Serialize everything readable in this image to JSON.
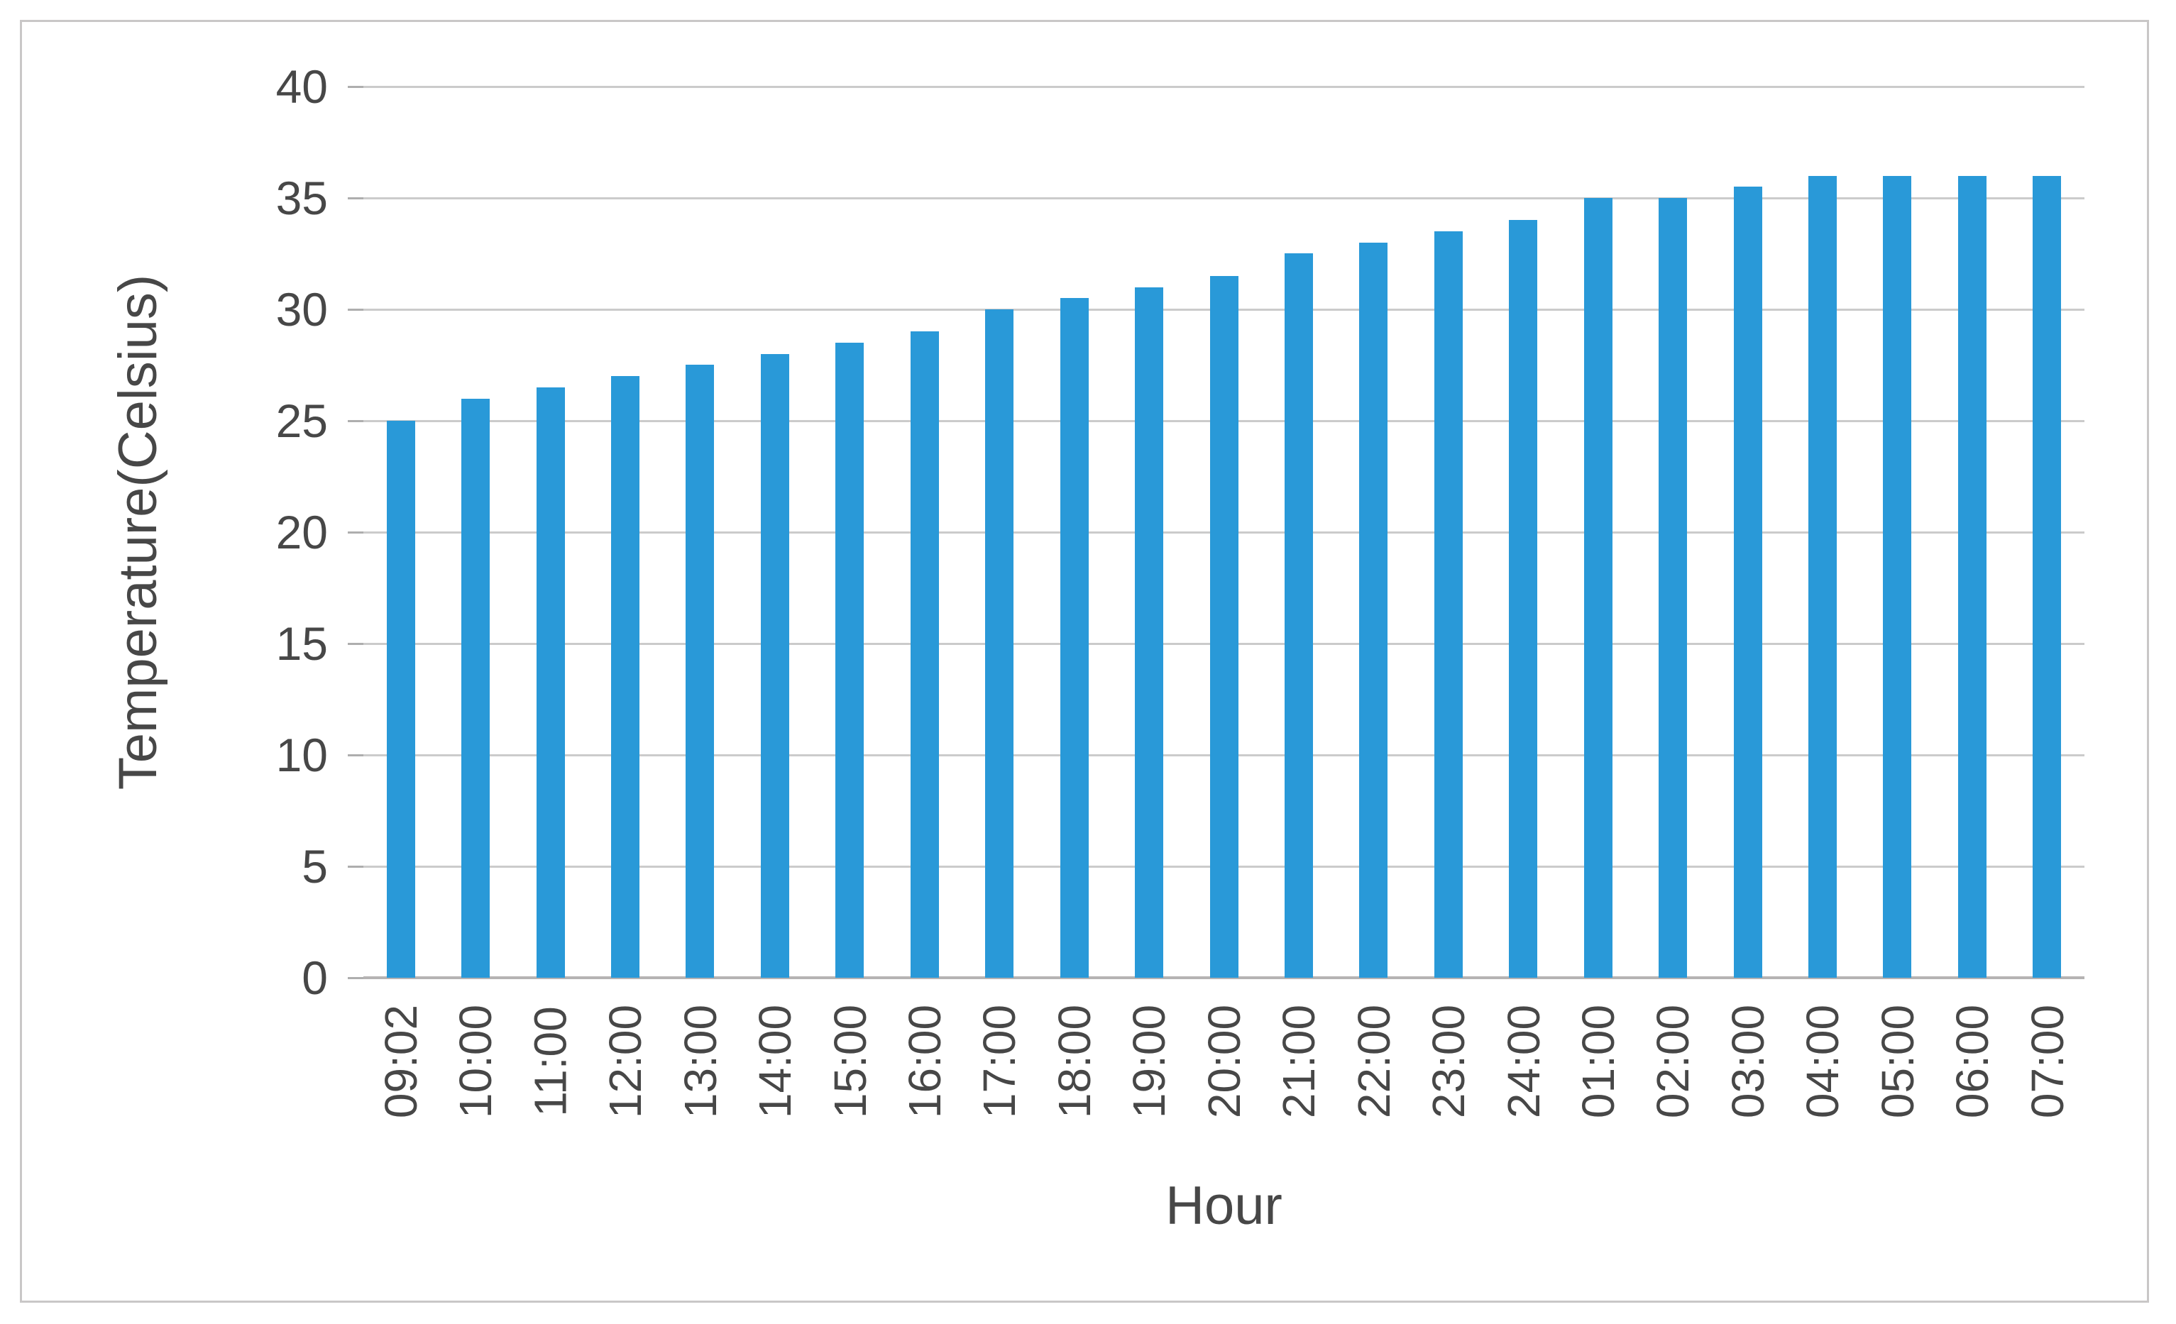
{
  "chart_data": {
    "type": "bar",
    "title": "",
    "xlabel": "Hour",
    "ylabel": "Temperature(Celsius)",
    "categories": [
      "09:02",
      "10:00",
      "11:00",
      "12:00",
      "13:00",
      "14:00",
      "15:00",
      "16:00",
      "17:00",
      "18:00",
      "19:00",
      "20:00",
      "21:00",
      "22:00",
      "23:00",
      "24:00",
      "01:00",
      "02:00",
      "03:00",
      "04:00",
      "05:00",
      "06:00",
      "07:00"
    ],
    "values": [
      25,
      26,
      26.5,
      27,
      27.5,
      28,
      28.5,
      29,
      30,
      30.5,
      31,
      31.5,
      32.5,
      33,
      33.5,
      34,
      35,
      35,
      35.5,
      36,
      36,
      36,
      36
    ],
    "yticks": [
      0,
      5,
      10,
      15,
      20,
      25,
      30,
      35,
      40
    ],
    "ylim": [
      0,
      40
    ],
    "grid": true,
    "legend": "none",
    "colors": {
      "bar": "#2999d8",
      "gridline": "#cbcbcb",
      "axis_line": "#b5b3b3",
      "tick_mark": "#aeaeae",
      "label_text": "#474747",
      "frame_border": "#c9c7c7",
      "background": "#ffffff"
    }
  }
}
